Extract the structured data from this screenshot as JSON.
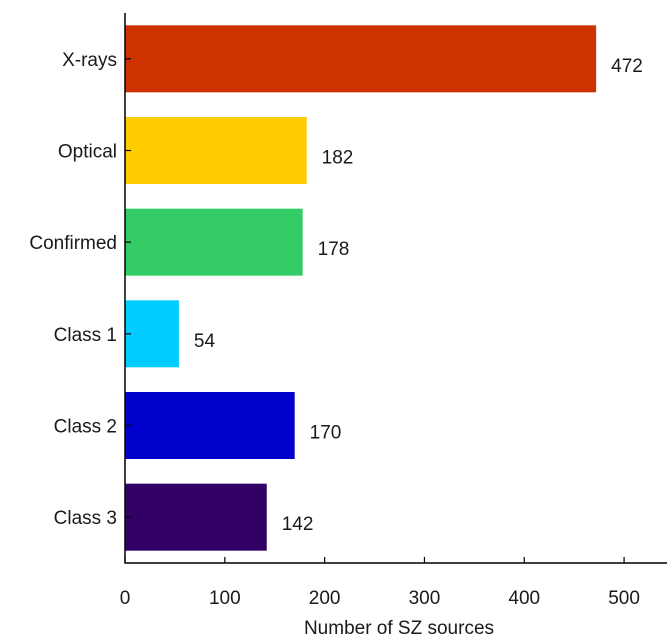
{
  "chart_data": {
    "type": "bar",
    "orientation": "horizontal",
    "categories": [
      "X-rays",
      "Optical",
      "Confirmed",
      "Class 1",
      "Class 2",
      "Class 3"
    ],
    "values": [
      472,
      182,
      178,
      54,
      170,
      142
    ],
    "colors": [
      "#cc3300",
      "#ffcc00",
      "#33cc66",
      "#00ccff",
      "#0000cc",
      "#330066"
    ],
    "data_labels": [
      "472",
      "182",
      "178",
      "54",
      "170",
      "142"
    ],
    "xlabel": "Number of SZ sources",
    "ylabel": "",
    "title": "",
    "xlim": [
      0,
      543
    ],
    "xticks": [
      0,
      100,
      200,
      300,
      400,
      500
    ],
    "xtick_labels": [
      "0",
      "100",
      "200",
      "300",
      "400",
      "500"
    ],
    "grid": false,
    "legend": "none"
  }
}
